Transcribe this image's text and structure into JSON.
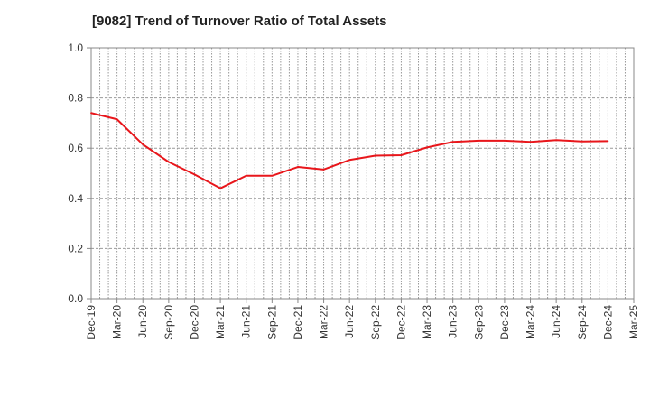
{
  "chart_data": {
    "type": "line",
    "title": "[9082]  Trend of Turnover Ratio of Total Assets",
    "xlabel": "",
    "ylabel": "",
    "ylim": [
      0.0,
      1.0
    ],
    "yticks": [
      "0.0",
      "0.2",
      "0.4",
      "0.6",
      "0.8",
      "1.0"
    ],
    "categories": [
      "Dec-19",
      "Mar-20",
      "Jun-20",
      "Sep-20",
      "Dec-20",
      "Mar-21",
      "Jun-21",
      "Sep-21",
      "Dec-21",
      "Mar-22",
      "Jun-22",
      "Sep-22",
      "Dec-22",
      "Mar-23",
      "Jun-23",
      "Sep-23",
      "Dec-23",
      "Mar-24",
      "Jun-24",
      "Sep-24",
      "Dec-24",
      "Mar-25"
    ],
    "grid": true,
    "legend": "none",
    "series": [
      {
        "color": "#e8161b",
        "values": [
          0.74,
          0.715,
          0.615,
          0.545,
          0.495,
          0.44,
          0.49,
          0.49,
          0.525,
          0.515,
          0.553,
          0.57,
          0.572,
          0.603,
          0.625,
          0.63,
          0.63,
          0.625,
          0.632,
          0.627,
          0.628,
          null
        ]
      }
    ]
  }
}
